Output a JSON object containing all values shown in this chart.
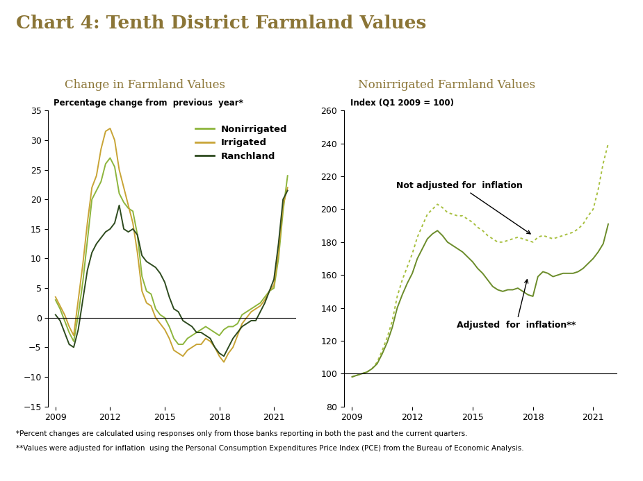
{
  "title": "Chart 4: Tenth District Farmland Values",
  "title_color": "#8B7536",
  "left_subtitle": "Change in Farmland Values",
  "right_subtitle": "Nonirrigated Farmland Values",
  "subtitle_color": "#8B7536",
  "footnote1": "*Percent changes are calculated using responses only from those banks reporting in both the past and the current quarters.",
  "footnote2": "**Values were adjusted for inflation  using the Personal Consumption Expenditures Price Index (PCE) from the Bureau of Economic Analysis.",
  "left_ylabel": "Percentage change from  previous  year*",
  "left_ylim": [
    -15,
    35
  ],
  "left_yticks": [
    -15,
    -10,
    -5,
    0,
    5,
    10,
    15,
    20,
    25,
    30,
    35
  ],
  "left_xticks": [
    2009,
    2012,
    2015,
    2018,
    2021
  ],
  "right_ylabel": "Index (Q1 2009 = 100)",
  "right_ylim": [
    80,
    260
  ],
  "right_yticks": [
    80,
    100,
    120,
    140,
    160,
    180,
    200,
    220,
    240,
    260
  ],
  "right_xticks": [
    2009,
    2012,
    2015,
    2018,
    2021
  ],
  "nonirrigated_color": "#8DB53C",
  "irrigated_color": "#C8A435",
  "ranchland_color": "#2D4A1E",
  "not_adj_color": "#A8C040",
  "adj_color": "#6B8C2A",
  "quarters": [
    2009.0,
    2009.25,
    2009.5,
    2009.75,
    2010.0,
    2010.25,
    2010.5,
    2010.75,
    2011.0,
    2011.25,
    2011.5,
    2011.75,
    2012.0,
    2012.25,
    2012.5,
    2012.75,
    2013.0,
    2013.25,
    2013.5,
    2013.75,
    2014.0,
    2014.25,
    2014.5,
    2014.75,
    2015.0,
    2015.25,
    2015.5,
    2015.75,
    2016.0,
    2016.25,
    2016.5,
    2016.75,
    2017.0,
    2017.25,
    2017.5,
    2017.75,
    2018.0,
    2018.25,
    2018.5,
    2018.75,
    2019.0,
    2019.25,
    2019.5,
    2019.75,
    2020.0,
    2020.25,
    2020.5,
    2020.75,
    2021.0,
    2021.25,
    2021.5,
    2021.75
  ],
  "nonirrigated": [
    3.0,
    1.5,
    -0.5,
    -2.5,
    -4.0,
    0.5,
    6.0,
    13.0,
    20.0,
    21.5,
    23.0,
    26.0,
    27.0,
    25.5,
    21.0,
    19.5,
    18.5,
    18.0,
    14.0,
    7.0,
    4.5,
    4.0,
    1.5,
    0.5,
    0.0,
    -1.5,
    -3.5,
    -4.5,
    -4.5,
    -3.5,
    -3.0,
    -2.5,
    -2.0,
    -1.5,
    -2.0,
    -2.5,
    -3.0,
    -2.0,
    -1.5,
    -1.5,
    -1.0,
    0.5,
    1.0,
    1.5,
    2.0,
    2.5,
    3.5,
    4.5,
    5.0,
    10.0,
    18.0,
    24.0
  ],
  "irrigated": [
    3.5,
    2.0,
    0.5,
    -1.5,
    -3.0,
    3.0,
    9.0,
    16.0,
    22.0,
    24.0,
    28.5,
    31.5,
    32.0,
    30.0,
    25.0,
    22.0,
    19.0,
    16.0,
    11.0,
    4.5,
    2.5,
    2.0,
    0.0,
    -1.0,
    -2.0,
    -3.5,
    -5.5,
    -6.0,
    -6.5,
    -5.5,
    -5.0,
    -4.5,
    -4.5,
    -3.5,
    -4.0,
    -5.0,
    -6.5,
    -7.5,
    -6.0,
    -5.0,
    -3.0,
    -1.0,
    0.0,
    1.0,
    1.5,
    2.0,
    3.0,
    4.5,
    5.5,
    11.0,
    19.0,
    22.0
  ],
  "ranchland": [
    0.5,
    -0.5,
    -2.5,
    -4.5,
    -5.0,
    -2.0,
    3.0,
    8.0,
    11.0,
    12.5,
    13.5,
    14.5,
    15.0,
    16.0,
    19.0,
    15.0,
    14.5,
    15.0,
    14.0,
    10.5,
    9.5,
    9.0,
    8.5,
    7.5,
    6.0,
    3.5,
    1.5,
    1.0,
    -0.5,
    -1.0,
    -1.5,
    -2.5,
    -2.5,
    -3.0,
    -3.5,
    -5.0,
    -6.0,
    -6.5,
    -5.0,
    -3.5,
    -2.5,
    -1.5,
    -1.0,
    -0.5,
    -0.5,
    1.0,
    2.5,
    4.5,
    6.5,
    12.5,
    20.0,
    21.5
  ],
  "right_quarters": [
    2009.0,
    2009.25,
    2009.5,
    2009.75,
    2010.0,
    2010.25,
    2010.5,
    2010.75,
    2011.0,
    2011.25,
    2011.5,
    2011.75,
    2012.0,
    2012.25,
    2012.5,
    2012.75,
    2013.0,
    2013.25,
    2013.5,
    2013.75,
    2014.0,
    2014.25,
    2014.5,
    2014.75,
    2015.0,
    2015.25,
    2015.5,
    2015.75,
    2016.0,
    2016.25,
    2016.5,
    2016.75,
    2017.0,
    2017.25,
    2017.5,
    2017.75,
    2018.0,
    2018.25,
    2018.5,
    2018.75,
    2019.0,
    2019.25,
    2019.5,
    2019.75,
    2020.0,
    2020.25,
    2020.5,
    2020.75,
    2021.0,
    2021.25,
    2021.5,
    2021.75
  ],
  "not_adjusted": [
    98,
    99,
    100,
    101,
    103,
    107,
    114,
    122,
    132,
    147,
    157,
    165,
    173,
    183,
    190,
    197,
    200,
    203,
    201,
    198,
    197,
    196,
    196,
    194,
    192,
    189,
    187,
    184,
    182,
    180,
    180,
    181,
    182,
    183,
    182,
    181,
    180,
    183,
    184,
    183,
    182,
    183,
    184,
    185,
    186,
    188,
    191,
    196,
    200,
    212,
    228,
    240
  ],
  "adjusted": [
    98,
    99,
    100,
    101,
    103,
    106,
    112,
    119,
    128,
    140,
    148,
    155,
    161,
    170,
    176,
    182,
    185,
    187,
    184,
    180,
    178,
    176,
    174,
    171,
    168,
    164,
    161,
    157,
    153,
    151,
    150,
    151,
    151,
    152,
    150,
    148,
    147,
    159,
    162,
    161,
    159,
    160,
    161,
    161,
    161,
    162,
    164,
    167,
    170,
    174,
    179,
    191
  ]
}
